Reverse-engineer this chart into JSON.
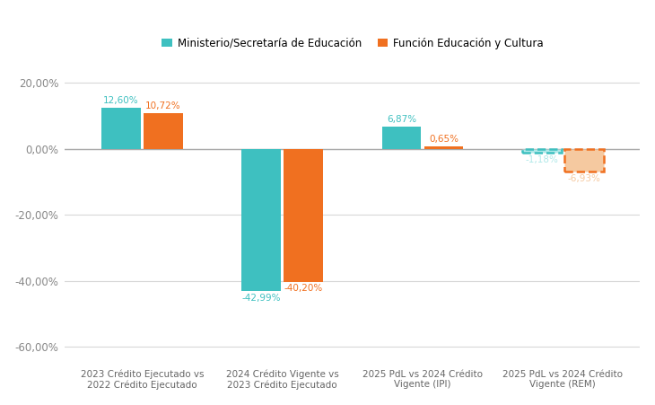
{
  "categories": [
    "2023 Crédito Ejecutado vs\n2022 Crédito Ejecutado",
    "2024 Crédito Vigente vs\n2023 Crédito Ejecutado",
    "2025 PdL vs 2024 Crédito\nVigente (IPI)",
    "2025 PdL vs 2024 Crédito\nVigente (REM)"
  ],
  "series": [
    {
      "name": "Ministerio/Secretaría de Educación",
      "values": [
        12.6,
        -42.99,
        6.87,
        -1.18
      ],
      "color": "#3ec0c0",
      "light_color": "#b0e8e8",
      "dashed": [
        false,
        false,
        false,
        true
      ]
    },
    {
      "name": "Función Educación y Cultura",
      "values": [
        10.72,
        -40.2,
        0.65,
        -6.93
      ],
      "color": "#f07020",
      "light_color": "#f5c9a0",
      "dashed": [
        false,
        false,
        false,
        true
      ]
    }
  ],
  "labels": [
    [
      "12,60%",
      "10,72%"
    ],
    [
      "-42,99%",
      "-40,20%"
    ],
    [
      "6,87%",
      "0,65%"
    ],
    [
      "-1,18%",
      "-6,93%"
    ]
  ],
  "ylim": [
    -65,
    25
  ],
  "yticks": [
    20,
    0,
    -20,
    -40,
    -60
  ],
  "background_color": "#ffffff",
  "grid_color": "#d8d8d8",
  "bar_width": 0.28,
  "bar_gap": 0.02
}
